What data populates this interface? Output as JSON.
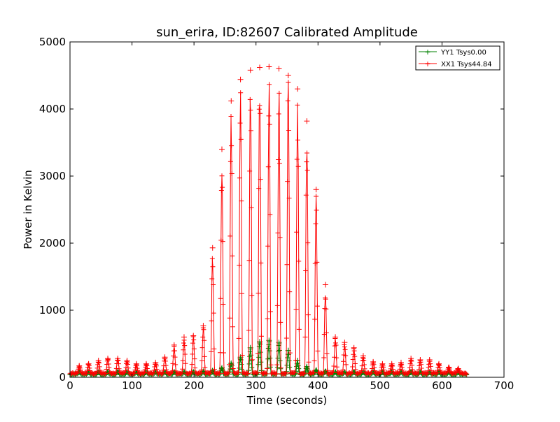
{
  "chart_data": {
    "type": "line",
    "title": "sun_erira, ID:82607 Calibrated Amplitude",
    "xlabel": "Time (seconds)",
    "ylabel": "Power in Kelvin",
    "xlim": [
      0,
      700
    ],
    "ylim": [
      0,
      5000
    ],
    "xticks": [
      "0",
      "100",
      "200",
      "300",
      "400",
      "500",
      "600",
      "700"
    ],
    "yticks": [
      "0",
      "1000",
      "2000",
      "3000",
      "4000",
      "5000"
    ],
    "grid": false,
    "legend_position": "top-right",
    "marker": "plus",
    "series": [
      {
        "name": "YY1 Tsys0.00",
        "color": "#008000",
        "baseline": 45,
        "x_range": [
          0,
          640
        ],
        "spikes": [
          {
            "x": 15,
            "y": 80
          },
          {
            "x": 30,
            "y": 80
          },
          {
            "x": 46,
            "y": 80
          },
          {
            "x": 61,
            "y": 80
          },
          {
            "x": 77,
            "y": 80
          },
          {
            "x": 92,
            "y": 80
          },
          {
            "x": 107,
            "y": 80
          },
          {
            "x": 123,
            "y": 80
          },
          {
            "x": 138,
            "y": 80
          },
          {
            "x": 153,
            "y": 80
          },
          {
            "x": 168,
            "y": 80
          },
          {
            "x": 184,
            "y": 80
          },
          {
            "x": 199,
            "y": 80
          },
          {
            "x": 215,
            "y": 90
          },
          {
            "x": 230,
            "y": 100
          },
          {
            "x": 245,
            "y": 140
          },
          {
            "x": 260,
            "y": 210
          },
          {
            "x": 275,
            "y": 300
          },
          {
            "x": 291,
            "y": 440
          },
          {
            "x": 306,
            "y": 530
          },
          {
            "x": 321,
            "y": 550
          },
          {
            "x": 337,
            "y": 520
          },
          {
            "x": 352,
            "y": 400
          },
          {
            "x": 367,
            "y": 250
          },
          {
            "x": 382,
            "y": 160
          },
          {
            "x": 397,
            "y": 110
          },
          {
            "x": 412,
            "y": 90
          },
          {
            "x": 428,
            "y": 80
          },
          {
            "x": 443,
            "y": 80
          },
          {
            "x": 458,
            "y": 80
          },
          {
            "x": 473,
            "y": 80
          },
          {
            "x": 489,
            "y": 80
          },
          {
            "x": 504,
            "y": 80
          },
          {
            "x": 519,
            "y": 80
          },
          {
            "x": 534,
            "y": 80
          },
          {
            "x": 550,
            "y": 80
          },
          {
            "x": 565,
            "y": 80
          },
          {
            "x": 580,
            "y": 80
          },
          {
            "x": 595,
            "y": 80
          },
          {
            "x": 611,
            "y": 80
          },
          {
            "x": 626,
            "y": 80
          }
        ]
      },
      {
        "name": "XX1 Tsys44.84",
        "color": "#ff0000",
        "baseline": 60,
        "x_range": [
          0,
          640
        ],
        "spikes": [
          {
            "x": 15,
            "y": 170
          },
          {
            "x": 30,
            "y": 200
          },
          {
            "x": 46,
            "y": 250
          },
          {
            "x": 61,
            "y": 280
          },
          {
            "x": 77,
            "y": 280
          },
          {
            "x": 92,
            "y": 250
          },
          {
            "x": 107,
            "y": 200
          },
          {
            "x": 123,
            "y": 200
          },
          {
            "x": 138,
            "y": 220
          },
          {
            "x": 153,
            "y": 300
          },
          {
            "x": 168,
            "y": 480
          },
          {
            "x": 184,
            "y": 600
          },
          {
            "x": 199,
            "y": 620
          },
          {
            "x": 215,
            "y": 770
          },
          {
            "x": 230,
            "y": 1930
          },
          {
            "x": 245,
            "y": 3400
          },
          {
            "x": 260,
            "y": 4120
          },
          {
            "x": 275,
            "y": 4440
          },
          {
            "x": 291,
            "y": 4580
          },
          {
            "x": 306,
            "y": 4620
          },
          {
            "x": 321,
            "y": 4630
          },
          {
            "x": 337,
            "y": 4600
          },
          {
            "x": 352,
            "y": 4500
          },
          {
            "x": 367,
            "y": 4300
          },
          {
            "x": 382,
            "y": 3820
          },
          {
            "x": 397,
            "y": 2800
          },
          {
            "x": 412,
            "y": 1380
          },
          {
            "x": 428,
            "y": 600
          },
          {
            "x": 443,
            "y": 520
          },
          {
            "x": 458,
            "y": 440
          },
          {
            "x": 473,
            "y": 320
          },
          {
            "x": 489,
            "y": 230
          },
          {
            "x": 504,
            "y": 200
          },
          {
            "x": 519,
            "y": 200
          },
          {
            "x": 534,
            "y": 220
          },
          {
            "x": 550,
            "y": 280
          },
          {
            "x": 565,
            "y": 260
          },
          {
            "x": 580,
            "y": 260
          },
          {
            "x": 595,
            "y": 200
          },
          {
            "x": 611,
            "y": 150
          },
          {
            "x": 626,
            "y": 130
          }
        ]
      }
    ]
  }
}
